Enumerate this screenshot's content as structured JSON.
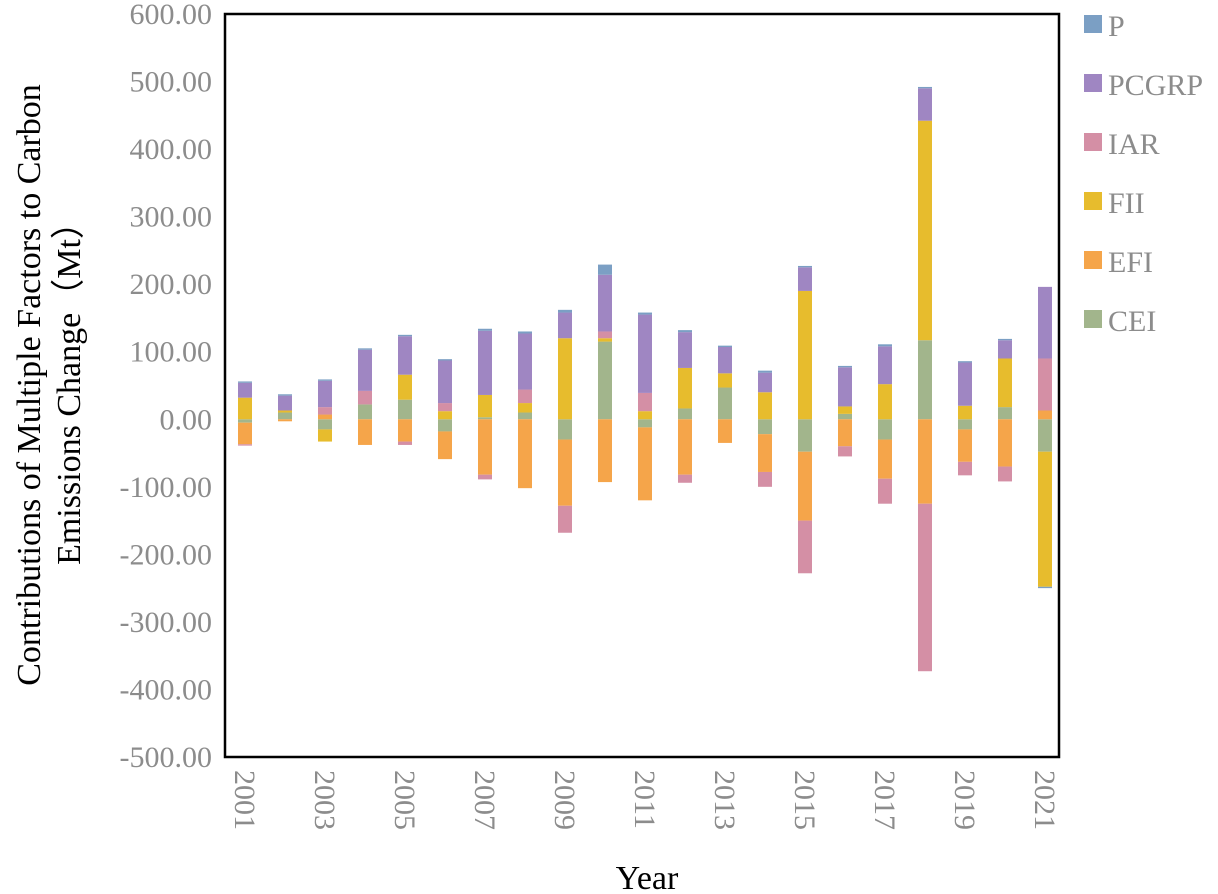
{
  "chart_data": {
    "type": "bar",
    "stacked": true,
    "title": "",
    "xlabel": "Year",
    "ylabel_lines": [
      "Contributions of Multiple Factors to Carbon",
      "Emissions Change（Mt）"
    ],
    "ylim": [
      -500,
      600
    ],
    "yticks": [
      600,
      500,
      400,
      300,
      200,
      100,
      0,
      -100,
      -200,
      -300,
      -400,
      -500
    ],
    "ytick_labels": [
      "600.00",
      "500.00",
      "400.00",
      "300.00",
      "200.00",
      "100.00",
      "0.00",
      "-100.00",
      "-200.00",
      "-300.00",
      "-400.00",
      "-500.00"
    ],
    "categories": [
      "2001",
      "2002",
      "2003",
      "2004",
      "2005",
      "2006",
      "2007",
      "2008",
      "2009",
      "2010",
      "2011",
      "2012",
      "2013",
      "2014",
      "2015",
      "2016",
      "2017",
      "2018",
      "2019",
      "2020",
      "2021"
    ],
    "xtick_labels": [
      "2001",
      "2003",
      "2005",
      "2007",
      "2009",
      "2011",
      "2013",
      "2015",
      "2017",
      "2019",
      "2021"
    ],
    "legend_position": "right",
    "series": [
      {
        "name": "CEI",
        "color": "#a2b58c",
        "values": [
          -5,
          10,
          -15,
          22,
          29,
          -18,
          3,
          10,
          -30,
          115,
          -12,
          16,
          47,
          -22,
          -48,
          8,
          -30,
          117,
          -15,
          18,
          -48
        ]
      },
      {
        "name": "EFI",
        "color": "#f5a54a",
        "values": [
          -32,
          -3,
          7,
          -38,
          -33,
          -41,
          -82,
          -102,
          -98,
          -93,
          -108,
          -82,
          -35,
          -56,
          -102,
          -40,
          -58,
          -125,
          -48,
          -70,
          13
        ]
      },
      {
        "name": "FII",
        "color": "#e7bc2d",
        "values": [
          32,
          3,
          -18,
          0,
          37,
          12,
          33,
          14,
          120,
          5,
          12,
          60,
          21,
          40,
          190,
          11,
          52,
          325,
          20,
          72,
          -200
        ]
      },
      {
        "name": "IAR",
        "color": "#d48fa5",
        "values": [
          -2,
          0,
          11,
          20,
          -5,
          12,
          -7,
          20,
          -40,
          10,
          27,
          -12,
          0,
          -22,
          -78,
          -15,
          -37,
          -248,
          -20,
          -22,
          77
        ]
      },
      {
        "name": "PCGRP",
        "color": "#9f86c2",
        "values": [
          22,
          22,
          39,
          61,
          57,
          63,
          95,
          83,
          38,
          84,
          116,
          53,
          39,
          29,
          35,
          58,
          56,
          48,
          64,
          27,
          106
        ]
      },
      {
        "name": "P",
        "color": "#7b9fc4",
        "values": [
          2,
          2,
          2,
          2,
          2,
          2,
          3,
          3,
          4,
          15,
          3,
          3,
          2,
          3,
          2,
          2,
          3,
          2,
          2,
          2,
          -2
        ]
      }
    ],
    "legend_order": [
      "P",
      "PCGRP",
      "IAR",
      "FII",
      "EFI",
      "CEI"
    ]
  }
}
